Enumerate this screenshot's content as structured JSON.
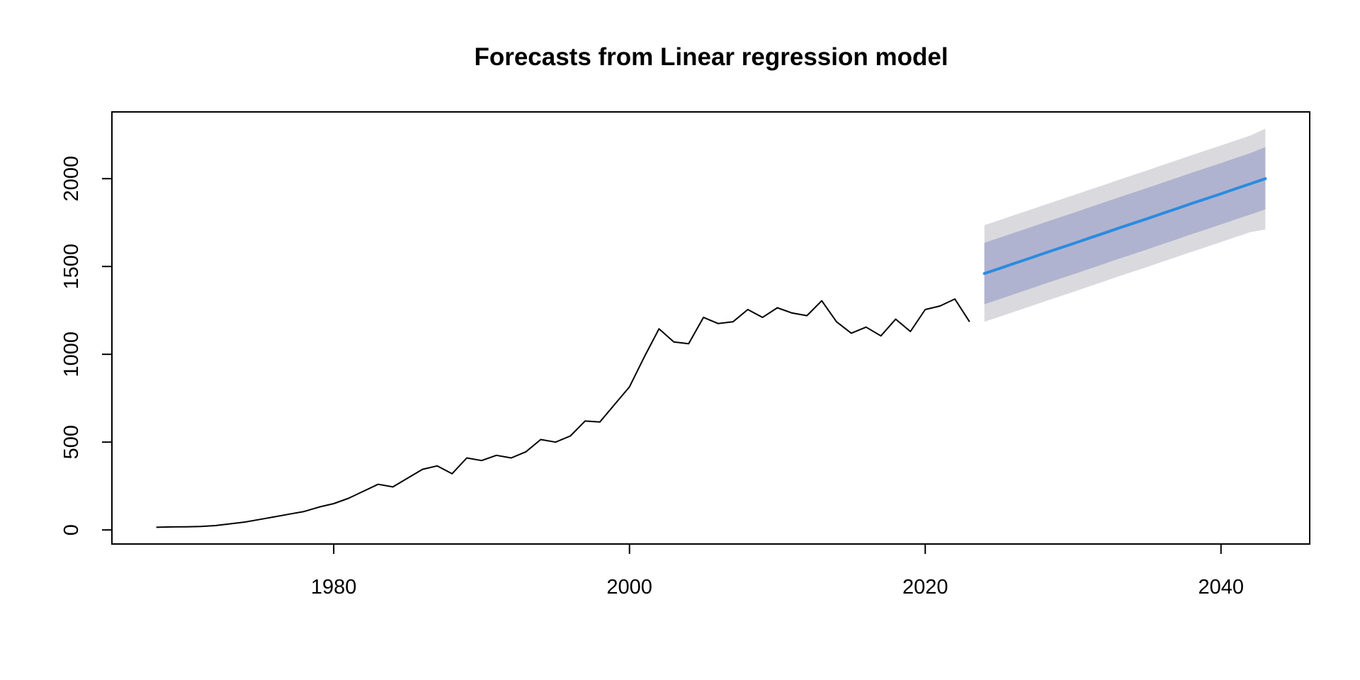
{
  "chart_data": {
    "type": "line",
    "title": "Forecasts from Linear regression model",
    "xlabel": "",
    "ylabel": "",
    "xlim": [
      1965,
      2046
    ],
    "ylim": [
      -80,
      2380
    ],
    "xticks": [
      1980,
      2000,
      2020,
      2040
    ],
    "yticks": [
      0,
      500,
      1000,
      1500,
      2000
    ],
    "grid": false,
    "legend": "none",
    "colors": {
      "history": "#000000",
      "forecast_mean": "#2b8be0",
      "band_95": "#dadade",
      "band_80": "#b0b3cf"
    },
    "history": {
      "x": [
        1968,
        1969,
        1970,
        1971,
        1972,
        1973,
        1974,
        1975,
        1976,
        1977,
        1978,
        1979,
        1980,
        1981,
        1982,
        1983,
        1984,
        1985,
        1986,
        1987,
        1988,
        1989,
        1990,
        1991,
        1992,
        1993,
        1994,
        1995,
        1996,
        1997,
        1998,
        1999,
        2000,
        2001,
        2002,
        2003,
        2004,
        2005,
        2006,
        2007,
        2008,
        2009,
        2010,
        2011,
        2012,
        2013,
        2014,
        2015,
        2016,
        2017,
        2018,
        2019,
        2020,
        2021,
        2022,
        2023
      ],
      "y": [
        15,
        17,
        18,
        20,
        25,
        35,
        45,
        60,
        75,
        90,
        105,
        130,
        150,
        180,
        220,
        260,
        245,
        295,
        345,
        365,
        320,
        410,
        395,
        425,
        410,
        445,
        515,
        500,
        535,
        620,
        615,
        715,
        815,
        985,
        1145,
        1070,
        1060,
        1210,
        1175,
        1185,
        1255,
        1210,
        1265,
        1235,
        1220,
        1305,
        1185,
        1120,
        1155,
        1105,
        1200,
        1130,
        1255,
        1275,
        1315,
        1185
      ]
    },
    "forecast": {
      "x": [
        2024,
        2025,
        2026,
        2027,
        2028,
        2029,
        2030,
        2031,
        2032,
        2033,
        2034,
        2035,
        2036,
        2037,
        2038,
        2039,
        2040,
        2041,
        2042,
        2043
      ],
      "mean": [
        1460,
        1488,
        1517,
        1545,
        1574,
        1602,
        1630,
        1659,
        1687,
        1716,
        1744,
        1772,
        1801,
        1829,
        1858,
        1886,
        1914,
        1943,
        1971,
        2000
      ],
      "lo80": [
        1285,
        1313,
        1342,
        1370,
        1399,
        1427,
        1455,
        1484,
        1512,
        1541,
        1569,
        1597,
        1626,
        1654,
        1683,
        1711,
        1739,
        1768,
        1796,
        1825
      ],
      "hi80": [
        1635,
        1663,
        1692,
        1720,
        1749,
        1777,
        1805,
        1834,
        1862,
        1891,
        1919,
        1947,
        1976,
        2004,
        2033,
        2061,
        2089,
        2118,
        2146,
        2180
      ],
      "lo95": [
        1185,
        1213,
        1242,
        1270,
        1299,
        1327,
        1355,
        1384,
        1412,
        1441,
        1469,
        1497,
        1526,
        1554,
        1583,
        1611,
        1639,
        1668,
        1696,
        1710
      ],
      "hi95": [
        1735,
        1763,
        1792,
        1820,
        1849,
        1877,
        1905,
        1934,
        1962,
        1991,
        2019,
        2047,
        2076,
        2104,
        2133,
        2161,
        2189,
        2218,
        2246,
        2285
      ]
    }
  }
}
